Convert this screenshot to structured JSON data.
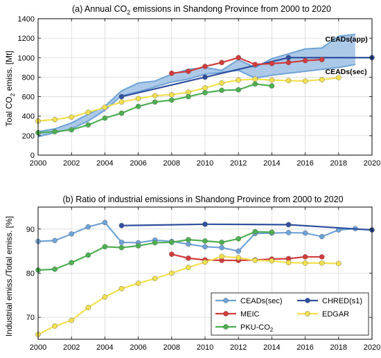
{
  "colors": {
    "ceads_sec": "#6fa3d6",
    "ceads_band": "#9dbfe4",
    "chred": "#2e4f9e",
    "meic": "#d33b3b",
    "edgar": "#f2e04f",
    "pku": "#4caf50",
    "axis": "#000000"
  },
  "chart_data": [
    {
      "type": "area",
      "title_prefix": "(a) Annual CO",
      "title_sub": "2",
      "title_suffix": " emissions in Shandong Province from 2000 to 2020",
      "ylabel_prefix": "Toal CO",
      "ylabel_sub": "2",
      "ylabel_suffix": " emiss. [Mt]",
      "xlim": [
        2000,
        2020
      ],
      "ylim": [
        0,
        1400
      ],
      "xticks": [
        "2000",
        "2002",
        "2004",
        "2006",
        "2008",
        "2010",
        "2012",
        "2014",
        "2016",
        "2018",
        "2020"
      ],
      "yticks": [
        "0",
        "200",
        "400",
        "600",
        "800",
        "1000",
        "1200",
        "1400"
      ],
      "grid": true,
      "annotations": [
        {
          "text": "CEADs(app)",
          "x": 2017.2,
          "y": 1165
        },
        {
          "text": "CEADs(sec)",
          "x": 2017.2,
          "y": 830
        }
      ],
      "band": {
        "x": [
          2000,
          2001,
          2002,
          2003,
          2004,
          2005,
          2006,
          2007,
          2008,
          2009,
          2010,
          2011,
          2012,
          2013,
          2014,
          2015,
          2016,
          2017,
          2018,
          2019
        ],
        "upper": [
          240,
          270,
          330,
          420,
          500,
          660,
          740,
          760,
          830,
          880,
          900,
          870,
          980,
          900,
          990,
          1040,
          1090,
          1100,
          1220,
          1240
        ],
        "lower": [
          190,
          230,
          270,
          350,
          460,
          610,
          650,
          700,
          750,
          780,
          830,
          850,
          870,
          790,
          820,
          840,
          860,
          880,
          900,
          930
        ]
      },
      "series": [
        {
          "key": "chred",
          "x": [
            2005,
            2010,
            2015,
            2020
          ],
          "values": [
            600,
            800,
            1000,
            1000
          ],
          "markers": true
        },
        {
          "key": "meic",
          "x": [
            2008,
            2009,
            2010,
            2011,
            2012,
            2013,
            2014,
            2015,
            2016,
            2017
          ],
          "values": [
            840,
            860,
            910,
            950,
            1000,
            930,
            940,
            950,
            970,
            980
          ],
          "markers": true
        },
        {
          "key": "edgar",
          "x": [
            2000,
            2001,
            2002,
            2003,
            2004,
            2005,
            2006,
            2007,
            2008,
            2009,
            2010,
            2011,
            2012,
            2013,
            2014,
            2015,
            2016,
            2017,
            2018
          ],
          "values": [
            350,
            365,
            390,
            440,
            490,
            545,
            580,
            610,
            620,
            645,
            690,
            740,
            770,
            780,
            770,
            765,
            760,
            775,
            795
          ],
          "markers": true
        },
        {
          "key": "pku",
          "x": [
            2000,
            2001,
            2002,
            2003,
            2004,
            2005,
            2006,
            2007,
            2008,
            2009,
            2010,
            2011,
            2012,
            2013,
            2014
          ],
          "values": [
            230,
            240,
            260,
            310,
            380,
            430,
            500,
            545,
            565,
            600,
            640,
            665,
            670,
            730,
            710
          ],
          "markers": true
        }
      ]
    },
    {
      "type": "line",
      "title": "(b) Ratio of industrial emissions in Shandong Province from 2000 to 2020",
      "ylabel": "Industrial emiss./Total emiss. [%]",
      "xlim": [
        2000,
        2020
      ],
      "ylim": [
        65,
        95
      ],
      "xticks": [
        "2000",
        "2002",
        "2004",
        "2006",
        "2008",
        "2010",
        "2012",
        "2014",
        "2016",
        "2018",
        "2020"
      ],
      "yticks": [
        "70",
        "80",
        "90"
      ],
      "grid": true,
      "legend_position": "bottom-right",
      "legend": [
        {
          "key": "ceads_sec",
          "label": "CEADs(sec)"
        },
        {
          "key": "chred",
          "label": "CHRED(s1)"
        },
        {
          "key": "meic",
          "label": "MEIC"
        },
        {
          "key": "edgar",
          "label": "EDGAR"
        },
        {
          "key": "pku",
          "label_prefix": "PKU-CO",
          "label_sub": "2"
        }
      ],
      "series": [
        {
          "key": "ceads_sec",
          "x": [
            2000,
            2001,
            2002,
            2003,
            2004,
            2005,
            2006,
            2007,
            2008,
            2009,
            2010,
            2011,
            2012,
            2013,
            2014,
            2015,
            2016,
            2017,
            2018,
            2019
          ],
          "values": [
            87.2,
            87.4,
            88.9,
            90.5,
            91.5,
            87.0,
            86.9,
            87.5,
            87.2,
            86.6,
            86.0,
            85.8,
            85.0,
            89.0,
            89.1,
            89.2,
            89.1,
            88.3,
            89.8,
            90.1
          ]
        },
        {
          "key": "chred",
          "x": [
            2005,
            2010,
            2015,
            2020
          ],
          "values": [
            90.8,
            91.1,
            91.0,
            89.8
          ]
        },
        {
          "key": "meic",
          "x": [
            2008,
            2009,
            2010,
            2011,
            2012,
            2013,
            2014,
            2015,
            2016,
            2017
          ],
          "values": [
            84.3,
            83.4,
            83.0,
            82.9,
            82.9,
            83.0,
            83.2,
            83.3,
            83.7,
            83.7
          ]
        },
        {
          "key": "edgar",
          "x": [
            2000,
            2001,
            2002,
            2003,
            2004,
            2005,
            2006,
            2007,
            2008,
            2009,
            2010,
            2011,
            2012,
            2013,
            2014,
            2015,
            2016,
            2017,
            2018
          ],
          "values": [
            66.1,
            68.0,
            69.3,
            72.2,
            74.6,
            76.5,
            77.7,
            78.8,
            80.0,
            81.3,
            82.5,
            83.8,
            83.5,
            82.9,
            82.8,
            82.4,
            82.3,
            82.3,
            82.2
          ]
        },
        {
          "key": "pku",
          "x": [
            2000,
            2001,
            2002,
            2003,
            2004,
            2005,
            2006,
            2007,
            2008,
            2009,
            2010,
            2011,
            2012,
            2013,
            2014
          ],
          "values": [
            80.7,
            80.9,
            82.4,
            84.1,
            86.0,
            85.8,
            86.2,
            86.9,
            87.0,
            87.6,
            87.3,
            87.0,
            87.8,
            89.4,
            89.3
          ]
        }
      ]
    }
  ]
}
